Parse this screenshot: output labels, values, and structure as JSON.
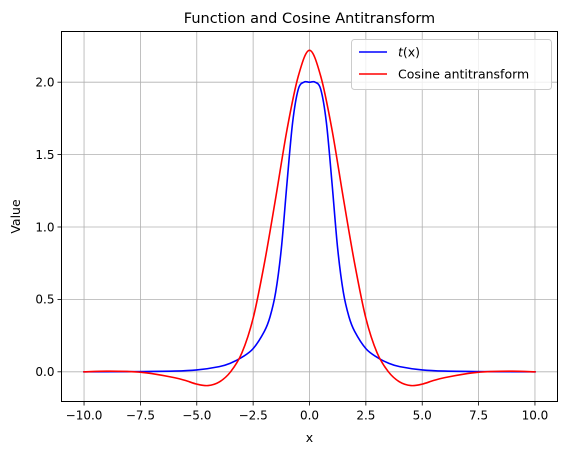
{
  "chart_data": {
    "type": "line",
    "title": "Function and Cosine Antitransform",
    "xlabel": "x",
    "ylabel": "Value",
    "xlim": [
      -11.0,
      11.0
    ],
    "ylim": [
      -0.205,
      2.35
    ],
    "xticks": [
      -10.0,
      -7.5,
      -5.0,
      -2.5,
      0.0,
      2.5,
      5.0,
      7.5,
      10.0
    ],
    "xtick_labels": [
      "−10.0",
      "−7.5",
      "−5.0",
      "−2.5",
      "0.0",
      "2.5",
      "5.0",
      "7.5",
      "10.0"
    ],
    "yticks": [
      0.0,
      0.5,
      1.0,
      1.5,
      2.0
    ],
    "ytick_labels": [
      "0.0",
      "0.5",
      "1.0",
      "1.5",
      "2.0"
    ],
    "grid": true,
    "legend_position": "top-right",
    "series": [
      {
        "name": "t(x)",
        "legend_base": "t",
        "legend_arg": "(x)",
        "color": "#0000ff",
        "x": [
          -10,
          -8,
          -6,
          -5,
          -4,
          -3.5,
          -3,
          -2.5,
          -2,
          -1.75,
          -1.5,
          -1.25,
          -1,
          -0.75,
          -0.5,
          -0.25,
          0,
          0.25,
          0.5,
          0.75,
          1,
          1.25,
          1.5,
          1.75,
          2,
          2.5,
          3,
          3.5,
          4,
          5,
          6,
          8,
          10
        ],
        "y": [
          0.0,
          0.001,
          0.005,
          0.013,
          0.036,
          0.06,
          0.1,
          0.16,
          0.28,
          0.38,
          0.55,
          0.85,
          1.3,
          1.72,
          1.95,
          2.0,
          2.0,
          2.0,
          1.95,
          1.72,
          1.3,
          0.85,
          0.55,
          0.38,
          0.28,
          0.16,
          0.1,
          0.06,
          0.036,
          0.013,
          0.005,
          0.001,
          0.0
        ]
      },
      {
        "name": "Cosine antitransform",
        "color": "#ff0000",
        "x": [
          -10,
          -9,
          -8,
          -7.5,
          -7,
          -6,
          -5.5,
          -5,
          -4.5,
          -4,
          -3.5,
          -3,
          -2.5,
          -2,
          -1.5,
          -1,
          -0.5,
          0,
          0.5,
          1,
          1.5,
          2,
          2.5,
          3,
          3.5,
          4,
          4.5,
          5,
          5.5,
          6,
          7,
          7.5,
          8,
          9,
          10
        ],
        "y": [
          0.0,
          0.004,
          0.002,
          -0.003,
          -0.012,
          -0.04,
          -0.06,
          -0.085,
          -0.095,
          -0.07,
          0.0,
          0.13,
          0.37,
          0.75,
          1.2,
          1.67,
          2.04,
          2.22,
          2.04,
          1.67,
          1.2,
          0.75,
          0.37,
          0.13,
          0.0,
          -0.07,
          -0.095,
          -0.085,
          -0.06,
          -0.04,
          -0.012,
          -0.003,
          0.002,
          0.004,
          0.0
        ]
      }
    ]
  }
}
